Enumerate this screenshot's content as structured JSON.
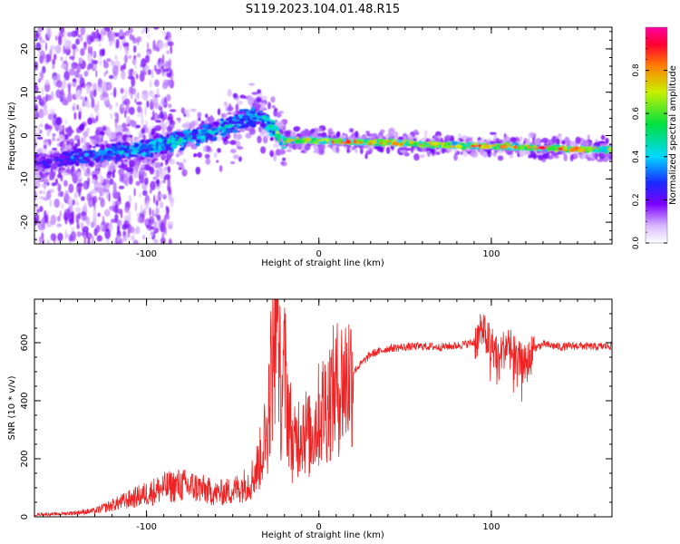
{
  "title": "S119.2023.104.01.48.R15",
  "chart_data": [
    {
      "type": "heatmap",
      "xlabel": "Height of straight line (km)",
      "ylabel": "Frequency (Hz)",
      "xlim": [
        -165,
        170
      ],
      "ylim": [
        -25,
        25
      ],
      "xticks": [
        -100,
        0,
        100
      ],
      "yticks": [
        -20,
        -10,
        0,
        10,
        20
      ],
      "colorbar": {
        "label": "Normalized spectral amplitude",
        "range": [
          0,
          1
        ],
        "ticks": [
          "0.0",
          "0.2",
          "0.4",
          "0.6",
          "0.8"
        ],
        "colormap": "rainbow (white-violet-blue-cyan-green-yellow-red-magenta)"
      },
      "ridge": {
        "x": [
          -160,
          -140,
          -120,
          -100,
          -80,
          -60,
          -45,
          -35,
          -28,
          -20,
          0,
          20,
          40,
          60,
          80,
          100,
          120,
          140,
          170
        ],
        "y": [
          -6,
          -5,
          -4,
          -3,
          -1,
          1,
          3.5,
          5,
          2,
          -1,
          -1.2,
          -1.5,
          -1.6,
          -2,
          -2.3,
          -2.5,
          -2.7,
          -3,
          -3.3
        ],
        "peak_amplitude": [
          0.25,
          0.35,
          0.4,
          0.45,
          0.45,
          0.45,
          0.45,
          0.4,
          0.5,
          0.75,
          0.8,
          0.85,
          0.9,
          0.85,
          0.8,
          0.85,
          0.85,
          0.9,
          0.75
        ]
      }
    },
    {
      "type": "line",
      "xlabel": "Height of straight line (km)",
      "ylabel": "SNR (10 * v/v)",
      "xlim": [
        -165,
        170
      ],
      "ylim": [
        0,
        750
      ],
      "xticks": [
        -100,
        0,
        100
      ],
      "yticks": [
        0,
        200,
        400,
        600
      ],
      "line_color": "#ee2222",
      "series": [
        {
          "x": [
            -165,
            -150,
            -130,
            -120,
            -110,
            -100,
            -90,
            -80,
            -70,
            -60,
            -50,
            -40,
            -35,
            -30,
            -27,
            -25,
            -22,
            -20,
            -15,
            -10,
            -5,
            0,
            5,
            10,
            20,
            30,
            40,
            50,
            60,
            70,
            80,
            90,
            95,
            100,
            105,
            110,
            115,
            120,
            125,
            130,
            140,
            150,
            160,
            170
          ],
          "y": [
            8,
            10,
            20,
            40,
            60,
            80,
            100,
            110,
            100,
            80,
            90,
            120,
            180,
            300,
            550,
            700,
            420,
            500,
            230,
            320,
            270,
            350,
            400,
            440,
            500,
            560,
            580,
            585,
            588,
            585,
            590,
            600,
            640,
            590,
            560,
            600,
            540,
            520,
            580,
            595,
            585,
            590,
            585,
            590
          ]
        }
      ]
    }
  ]
}
